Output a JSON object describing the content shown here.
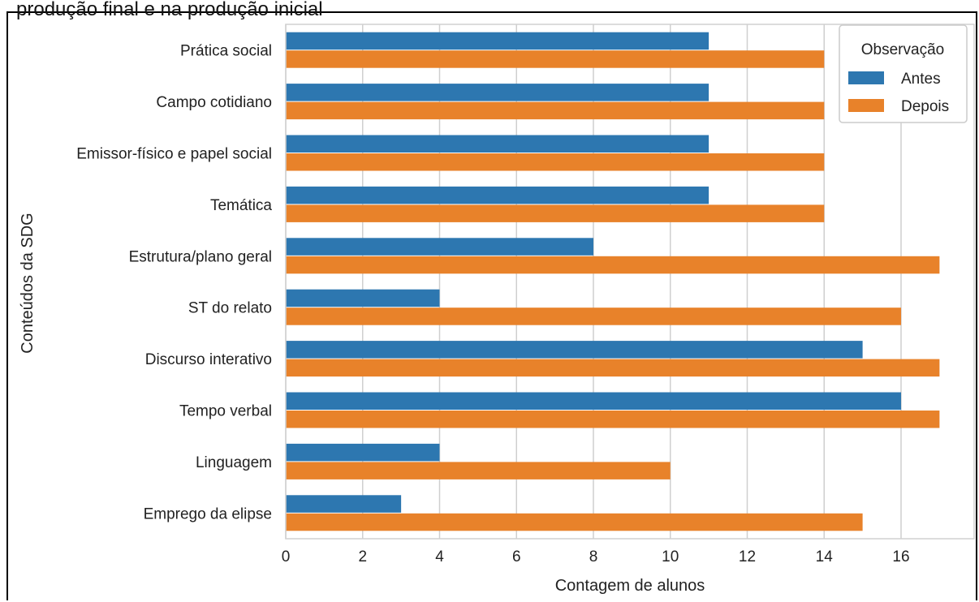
{
  "header": {
    "title_fragment": "produção final e na produção inicial"
  },
  "chart_data": {
    "type": "bar",
    "orientation": "horizontal",
    "categories": [
      "Prática social",
      "Campo cotidiano",
      "Emissor-físico e papel social",
      "Temática",
      "Estrutura/plano geral",
      "ST do relato",
      "Discurso interativo",
      "Tempo verbal",
      "Linguagem",
      "Emprego da elipse"
    ],
    "series": [
      {
        "name": "Antes",
        "color": "#2d77b0",
        "values": [
          11,
          11,
          11,
          11,
          8,
          4,
          15,
          16,
          4,
          3
        ]
      },
      {
        "name": "Depois",
        "color": "#e8822a",
        "values": [
          14,
          14,
          14,
          14,
          17,
          16,
          17,
          17,
          10,
          15
        ]
      }
    ],
    "xlabel": "Contagem de alunos",
    "ylabel": "Conteúdos da SDG",
    "xlim": [
      0,
      17.9
    ],
    "xticks": [
      0,
      2,
      4,
      6,
      8,
      10,
      12,
      14,
      16
    ],
    "grid": "vertical",
    "legend": {
      "title": "Observação",
      "placement": "upper-right"
    }
  }
}
